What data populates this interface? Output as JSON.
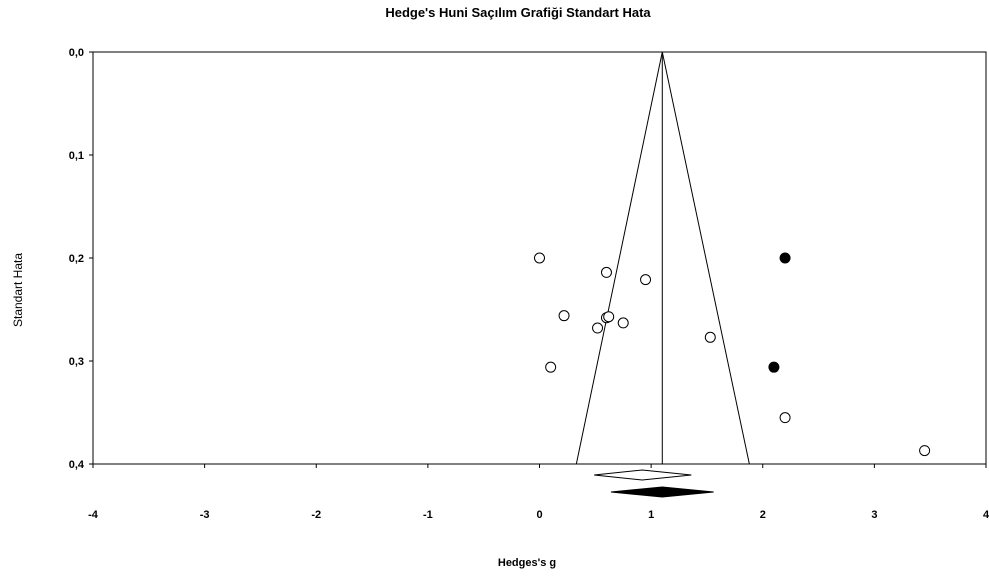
{
  "chart_data": {
    "type": "scatter",
    "title": "Hedge's Huni Saçılım Grafiği Standart Hata",
    "xlabel": "Hedges's g",
    "ylabel": "Standart Hata",
    "xlim": [
      -4,
      4
    ],
    "ylim": [
      0,
      0.4
    ],
    "y_inverted": true,
    "x_ticks": [
      "-4",
      "-3",
      "-2",
      "-1",
      "0",
      "1",
      "2",
      "3",
      "4"
    ],
    "y_ticks": [
      "0,0",
      "0,1",
      "0,2",
      "0,3",
      "0,4"
    ],
    "grid": false,
    "series": [
      {
        "marker": "open-circle",
        "points": [
          {
            "x": 0.0,
            "y": 0.2
          },
          {
            "x": 0.6,
            "y": 0.214
          },
          {
            "x": 0.95,
            "y": 0.221
          },
          {
            "x": 0.22,
            "y": 0.256
          },
          {
            "x": 0.6,
            "y": 0.258
          },
          {
            "x": 0.62,
            "y": 0.257
          },
          {
            "x": 0.52,
            "y": 0.268
          },
          {
            "x": 0.75,
            "y": 0.263
          },
          {
            "x": 1.53,
            "y": 0.277
          },
          {
            "x": 0.1,
            "y": 0.306
          },
          {
            "x": 2.2,
            "y": 0.355
          },
          {
            "x": 3.45,
            "y": 0.387
          }
        ]
      },
      {
        "marker": "filled-circle",
        "points": [
          {
            "x": 2.2,
            "y": 0.2
          },
          {
            "x": 2.1,
            "y": 0.306
          }
        ]
      }
    ],
    "funnel": {
      "center": 1.1,
      "left_at_max_se": 0.33,
      "right_at_max_se": 1.88
    },
    "summary_diamonds": [
      {
        "style": "open",
        "low": 0.49,
        "center": 0.92,
        "high": 1.36
      },
      {
        "style": "filled",
        "low": 0.64,
        "center": 1.1,
        "high": 1.56
      }
    ],
    "colors": {
      "marker": "#000000",
      "background": "#ffffff"
    }
  }
}
